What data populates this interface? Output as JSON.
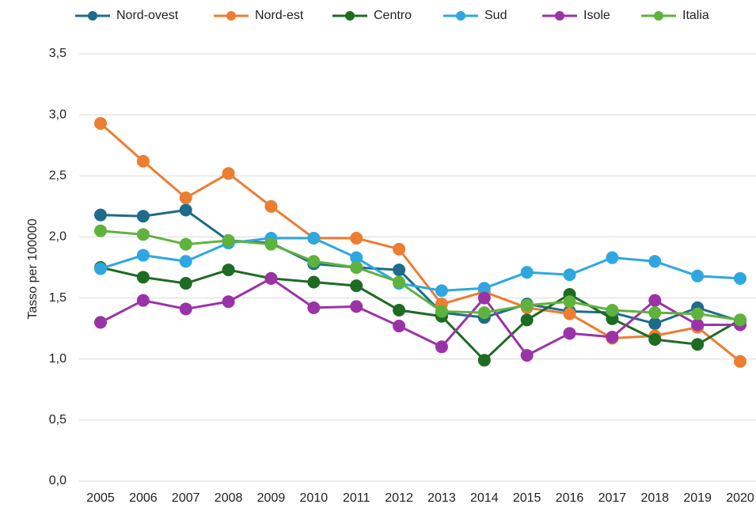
{
  "chart_data": {
    "type": "line",
    "y_label": "Tasso per 100000",
    "categories": [
      "2005",
      "2006",
      "2007",
      "2008",
      "2009",
      "2010",
      "2011",
      "2012",
      "2013",
      "2014",
      "2015",
      "2016",
      "2017",
      "2018",
      "2019",
      "2020"
    ],
    "series": [
      {
        "name": "Nord-ovest",
        "color": "#1f6b8c",
        "values": [
          2.18,
          2.17,
          2.22,
          1.97,
          1.95,
          1.78,
          1.75,
          1.73,
          1.38,
          1.34,
          1.45,
          1.39,
          1.38,
          1.29,
          1.42,
          1.31
        ]
      },
      {
        "name": "Nord-est",
        "color": "#ed7d31",
        "values": [
          2.93,
          2.62,
          2.32,
          2.52,
          2.25,
          1.99,
          1.99,
          1.9,
          1.45,
          1.55,
          1.42,
          1.37,
          1.17,
          1.19,
          1.26,
          0.98
        ]
      },
      {
        "name": "Centro",
        "color": "#1e6b23",
        "values": [
          1.75,
          1.67,
          1.62,
          1.73,
          1.66,
          1.63,
          1.6,
          1.4,
          1.35,
          0.99,
          1.32,
          1.53,
          1.33,
          1.16,
          1.12,
          1.32
        ]
      },
      {
        "name": "Sud",
        "color": "#2ea7e0",
        "values": [
          1.74,
          1.85,
          1.8,
          1.95,
          1.99,
          1.99,
          1.83,
          1.62,
          1.56,
          1.58,
          1.71,
          1.69,
          1.83,
          1.8,
          1.68,
          1.66
        ]
      },
      {
        "name": "Isole",
        "color": "#9b33a8",
        "values": [
          1.3,
          1.48,
          1.41,
          1.47,
          1.66,
          1.42,
          1.43,
          1.27,
          1.1,
          1.5,
          1.03,
          1.21,
          1.18,
          1.48,
          1.28,
          1.28
        ]
      },
      {
        "name": "Italia",
        "color": "#5fb33d",
        "values": [
          2.05,
          2.02,
          1.94,
          1.97,
          1.94,
          1.8,
          1.75,
          1.63,
          1.39,
          1.38,
          1.44,
          1.47,
          1.4,
          1.38,
          1.37,
          1.32
        ]
      }
    ],
    "ylim": [
      0,
      3.5
    ],
    "yticks": [
      {
        "value": 0,
        "label": "0,0"
      },
      {
        "value": 0.5,
        "label": "0,5"
      },
      {
        "value": 1,
        "label": "1,0"
      },
      {
        "value": 1.5,
        "label": "1,5"
      },
      {
        "value": 2,
        "label": "2,0"
      },
      {
        "value": 2.5,
        "label": "2,5"
      },
      {
        "value": 3,
        "label": "3,0"
      },
      {
        "value": 3.5,
        "label": "3,5"
      }
    ],
    "grid": true,
    "legend": "top"
  }
}
